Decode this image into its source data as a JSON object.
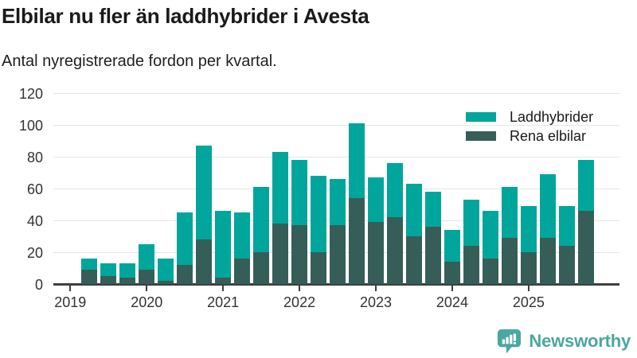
{
  "header": {
    "title": "Elbilar nu fler än laddhybrider i Avesta",
    "subtitle": "Antal nyregistrerade fordon per kvartal."
  },
  "legend": {
    "items": [
      {
        "label": "Laddhybrider",
        "color": "#00a69b"
      },
      {
        "label": "Rena elbilar",
        "color": "#365e59"
      }
    ]
  },
  "footer": {
    "brand": "Newsworthy",
    "brand_color": "#4aa7a1"
  },
  "chart_data": {
    "type": "bar",
    "stacked": true,
    "title": "Elbilar nu fler än laddhybrider i Avesta",
    "subtitle": "Antal nyregistrerade fordon per kvartal.",
    "categories": [
      "2019 Q2",
      "2019 Q3",
      "2019 Q4",
      "2020 Q1",
      "2020 Q2",
      "2020 Q3",
      "2020 Q4",
      "2021 Q1",
      "2021 Q2",
      "2021 Q3",
      "2021 Q4",
      "2022 Q1",
      "2022 Q2",
      "2022 Q3",
      "2022 Q4",
      "2023 Q1",
      "2023 Q2",
      "2023 Q3",
      "2023 Q4",
      "2024 Q1",
      "2024 Q2",
      "2024 Q3",
      "2024 Q4",
      "2025 Q1",
      "2025 Q2",
      "2025 Q3",
      "2025 Q4"
    ],
    "series": [
      {
        "name": "Rena elbilar",
        "color": "#365e59",
        "values": [
          9,
          5,
          4,
          9,
          2,
          12,
          28,
          4,
          16,
          20,
          38,
          37,
          20,
          37,
          54,
          39,
          42,
          30,
          36,
          14,
          24,
          16,
          29,
          20,
          29,
          24,
          46
        ]
      },
      {
        "name": "Laddhybrider",
        "color": "#00a69b",
        "values": [
          7,
          8,
          9,
          16,
          14,
          33,
          59,
          42,
          29,
          41,
          45,
          41,
          48,
          29,
          47,
          28,
          34,
          33,
          22,
          20,
          29,
          30,
          32,
          29,
          40,
          25,
          32
        ]
      }
    ],
    "stack_totals": [
      16,
      13,
      13,
      25,
      16,
      45,
      87,
      46,
      45,
      61,
      83,
      78,
      68,
      66,
      101,
      67,
      76,
      63,
      58,
      34,
      53,
      46,
      61,
      49,
      69,
      49,
      78
    ],
    "x_tick_labels": [
      "2019",
      "2020",
      "2021",
      "2022",
      "2023",
      "2024",
      "2025"
    ],
    "y_ticks": [
      0,
      20,
      40,
      60,
      80,
      100,
      120
    ],
    "ylim": [
      0,
      120
    ],
    "grid": true,
    "legend_position": "top-right",
    "colors": {
      "axis": "#3f3f3f",
      "gridline": "#e6e6e6",
      "tick_text": "#333333"
    }
  }
}
